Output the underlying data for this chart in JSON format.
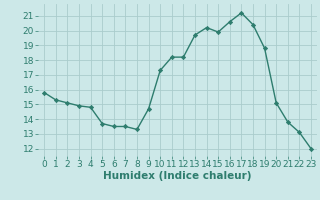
{
  "x": [
    0,
    1,
    2,
    3,
    4,
    5,
    6,
    7,
    8,
    9,
    10,
    11,
    12,
    13,
    14,
    15,
    16,
    17,
    18,
    19,
    20,
    21,
    22,
    23
  ],
  "y": [
    15.8,
    15.3,
    15.1,
    14.9,
    14.8,
    13.7,
    13.5,
    13.5,
    13.3,
    14.7,
    17.3,
    18.2,
    18.2,
    19.7,
    20.2,
    19.9,
    20.6,
    21.2,
    20.4,
    18.8,
    15.1,
    13.8,
    13.1,
    12.0
  ],
  "line_color": "#2e7d6e",
  "marker": "D",
  "markersize": 2.2,
  "linewidth": 1.0,
  "background_color": "#cce8e8",
  "grid_color": "#aacccc",
  "xlabel": "Humidex (Indice chaleur)",
  "xlabel_fontsize": 7.5,
  "tick_fontsize": 6.5,
  "ylim": [
    11.5,
    21.8
  ],
  "yticks": [
    12,
    13,
    14,
    15,
    16,
    17,
    18,
    19,
    20,
    21
  ],
  "xlim": [
    -0.5,
    23.5
  ],
  "xticks": [
    0,
    1,
    2,
    3,
    4,
    5,
    6,
    7,
    8,
    9,
    10,
    11,
    12,
    13,
    14,
    15,
    16,
    17,
    18,
    19,
    20,
    21,
    22,
    23
  ]
}
